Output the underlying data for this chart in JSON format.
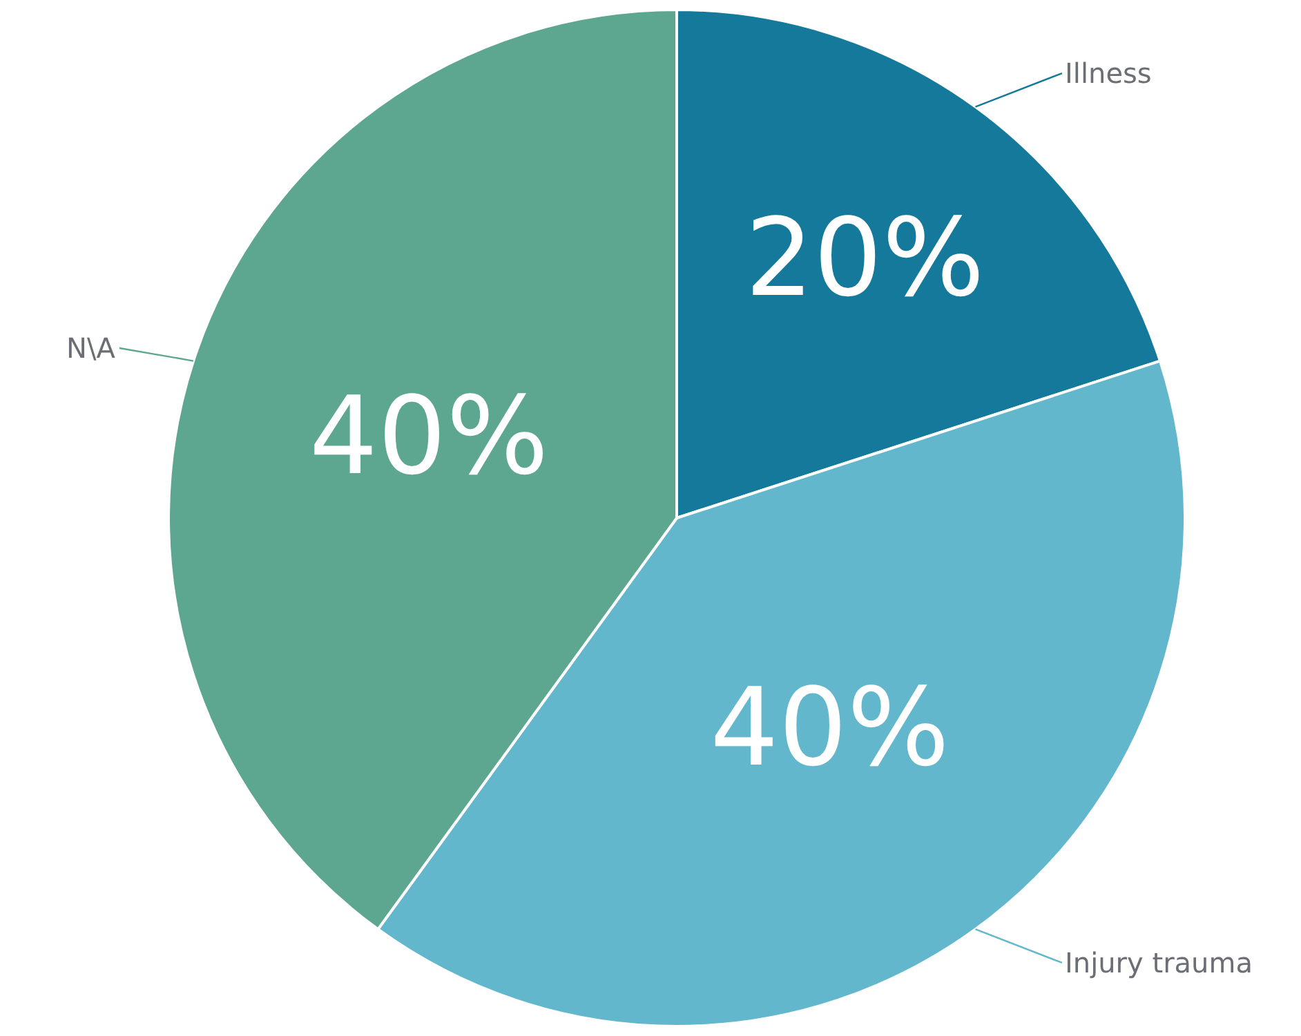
{
  "chart_data": {
    "type": "pie",
    "categories": [
      "Illness",
      "Injury trauma",
      "N\\A"
    ],
    "values": [
      20,
      40,
      40
    ],
    "colors": [
      "#14799a",
      "#62b7cc",
      "#5da790"
    ],
    "value_labels": [
      "20%",
      "40%",
      "40%"
    ],
    "legend": false
  }
}
